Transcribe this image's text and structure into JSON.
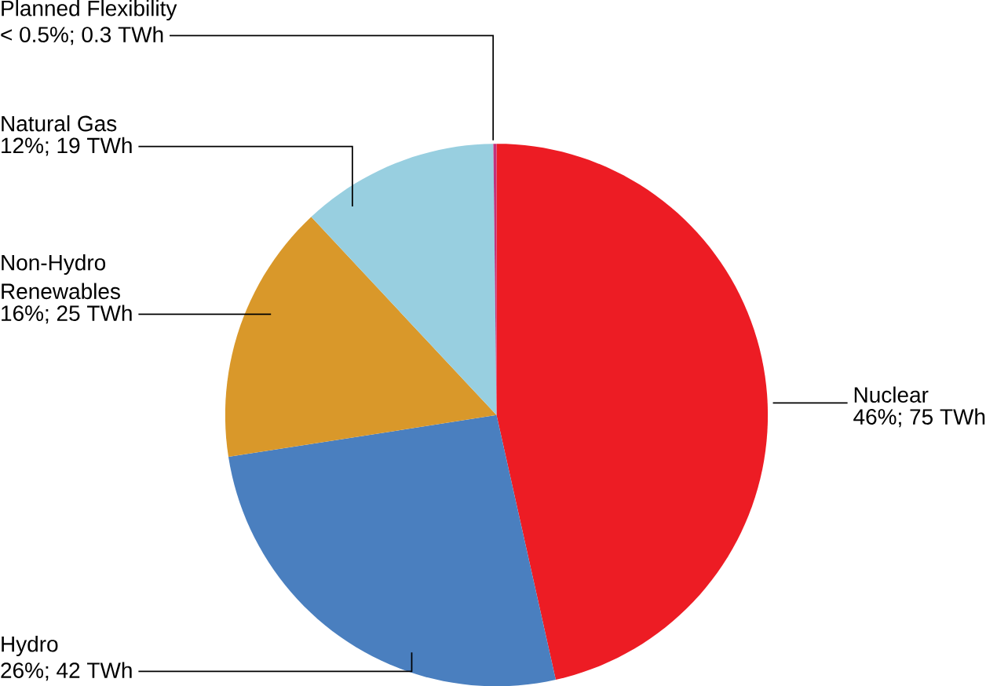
{
  "chart_data": {
    "type": "pie",
    "categories": [
      "Nuclear",
      "Hydro",
      "Non-Hydro Renewables",
      "Natural Gas",
      "Planned Flexibility"
    ],
    "values": [
      75,
      42,
      25,
      19,
      0.3
    ],
    "value_labels": [
      "46%; 75 TWh",
      "26%; 42 TWh",
      "16%; 25 TWh",
      "12%; 19 TWh",
      "< 0.5%; 0.3 TWh"
    ],
    "colors": [
      "#ed1c24",
      "#4a7fbf",
      "#d9982a",
      "#98cfe0",
      "#c4307a"
    ]
  }
}
